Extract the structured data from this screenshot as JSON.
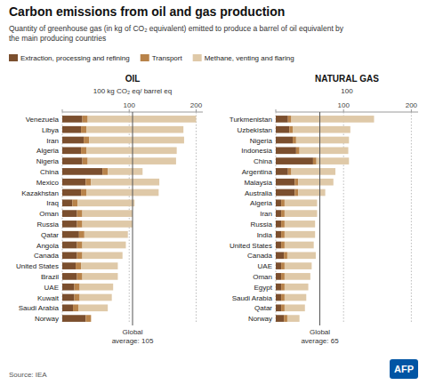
{
  "title": "Carbon emissions from oil and gas production",
  "subtitle": "Quantity of greenhouse gas (in kg of CO₂ equivalent) emitted to produce a barrel of oil equivalent by\nthe main producing countries",
  "annotations": [
    "Source: IEA",
    "AFP"
  ],
  "chart_data": [
    {
      "type": "bar",
      "orientation": "horizontal",
      "stacked": true,
      "grid": true,
      "legend": "top",
      "title": "OIL",
      "x_label": "100 kg CO₂ eq/ barrel eq",
      "categories": [
        "Venezuela",
        "Libya",
        "Iran",
        "Algeria",
        "Nigeria",
        "China",
        "Mexico",
        "Kazakhstan",
        "Iraq",
        "Oman",
        "Russia",
        "Qatar",
        "Angola",
        "Canada",
        "United States",
        "Brazil",
        "UAE",
        "Kuwait",
        "Saudi Arabia",
        "Norway"
      ],
      "series": [
        {
          "name": "Extraction, processing and refining",
          "color": "#7b4f2e",
          "values": [
            30,
            28,
            32,
            28,
            30,
            60,
            35,
            28,
            15,
            22,
            22,
            25,
            22,
            22,
            20,
            22,
            18,
            18,
            16,
            35
          ]
        },
        {
          "name": "Transport",
          "color": "#b8834a",
          "values": [
            8,
            8,
            8,
            8,
            8,
            8,
            8,
            8,
            8,
            8,
            8,
            8,
            8,
            8,
            8,
            8,
            8,
            8,
            8,
            8
          ]
        },
        {
          "name": "Methane, venting and flaring",
          "color": "#dfc9a8",
          "values": [
            162,
            145,
            142,
            135,
            132,
            52,
            102,
            108,
            85,
            75,
            75,
            65,
            65,
            60,
            55,
            53,
            50,
            48,
            44,
            0
          ]
        }
      ],
      "xlim": [
        0,
        210
      ],
      "xticks": [
        {
          "value": 0,
          "label": null
        },
        100,
        200
      ],
      "annotations": [
        {
          "text": "Global\naverage: 105",
          "x": 105
        }
      ]
    },
    {
      "type": "bar",
      "orientation": "horizontal",
      "stacked": true,
      "grid": true,
      "title": "NATURAL GAS",
      "x_label": "100",
      "categories": [
        "Turkmenistan",
        "Uzbekistan",
        "Nigeria",
        "Indonesia",
        "China",
        "Argentina",
        "Malaysia",
        "Australia",
        "Algeria",
        "Iran",
        "Russia",
        "India",
        "United States",
        "Canada",
        "UAE",
        "Oman",
        "Egypt",
        "Saudi Arabia",
        "Qatar",
        "Norway"
      ],
      "series": [
        {
          "color": "#7b4f2e",
          "values": [
            18,
            20,
            25,
            30,
            55,
            18,
            28,
            28,
            8,
            8,
            8,
            8,
            8,
            12,
            8,
            8,
            8,
            8,
            8,
            12
          ]
        },
        {
          "color": "#b8834a",
          "values": [
            5,
            5,
            5,
            5,
            5,
            5,
            5,
            5,
            5,
            5,
            5,
            5,
            5,
            5,
            5,
            5,
            5,
            5,
            5,
            5
          ]
        },
        {
          "color": "#dfc9a8",
          "values": [
            122,
            85,
            78,
            72,
            48,
            65,
            52,
            40,
            48,
            48,
            45,
            45,
            43,
            42,
            40,
            38,
            35,
            32,
            30,
            18
          ]
        }
      ],
      "xlim": [
        0,
        210
      ],
      "xticks": [
        {
          "value": 0,
          "label": null
        },
        100,
        200
      ],
      "annotations": [
        {
          "text": "Global\naverage: 65",
          "x": 65
        }
      ]
    }
  ]
}
